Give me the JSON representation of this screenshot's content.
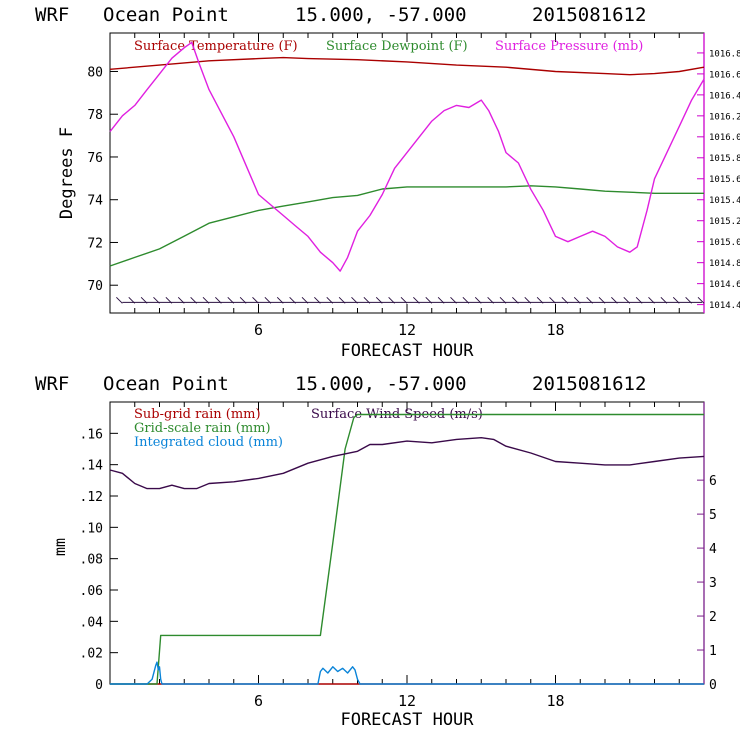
{
  "chart_data": [
    {
      "type": "line",
      "header": {
        "model": "WRF",
        "location": "Ocean Point",
        "coords": "15.000, -57.000",
        "init": "2015081612"
      },
      "xlabel": "FORECAST HOUR",
      "ylabel": "Degrees F",
      "xlim": [
        0,
        24
      ],
      "xticks": [
        6,
        12,
        18
      ],
      "ylim_left": [
        68.7,
        81.8
      ],
      "yticks_left": [
        70,
        72,
        74,
        76,
        78,
        80
      ],
      "ylim_right": [
        1014.32,
        1016.99
      ],
      "yticks_right": [
        "1014.4",
        "1014.6",
        "1014.8",
        "1015.0",
        "1015.2",
        "1015.4",
        "1015.6",
        "1015.8",
        "1016.0",
        "1016.2",
        "1016.4",
        "1016.6",
        "1016.8"
      ],
      "wind_barbs_y": 69.2,
      "wind_barbs_count": 48,
      "series": [
        {
          "name": "Surface Temperature (F)",
          "color": "#aa0000",
          "axis": "left",
          "x": [
            0,
            2,
            4,
            6,
            7,
            8,
            10,
            12,
            14,
            16,
            18,
            20,
            21,
            22,
            23,
            24
          ],
          "values": [
            80.1,
            80.3,
            80.5,
            80.6,
            80.65,
            80.6,
            80.55,
            80.45,
            80.3,
            80.2,
            80.0,
            79.9,
            79.85,
            79.9,
            80.0,
            80.2
          ]
        },
        {
          "name": "Surface Dewpoint (F)",
          "color": "#2e8b2e",
          "axis": "left",
          "x": [
            0,
            1,
            2,
            3,
            4,
            5,
            6,
            7,
            8,
            9,
            10,
            11,
            12,
            13,
            14,
            15,
            16,
            17,
            18,
            19,
            20,
            21,
            22,
            23,
            24
          ],
          "values": [
            70.9,
            71.3,
            71.7,
            72.3,
            72.9,
            73.2,
            73.5,
            73.7,
            73.9,
            74.1,
            74.2,
            74.5,
            74.6,
            74.6,
            74.6,
            74.6,
            74.6,
            74.65,
            74.6,
            74.5,
            74.4,
            74.35,
            74.3,
            74.3,
            74.3
          ]
        },
        {
          "name": "Surface Pressure (mb)",
          "color": "#e020e0",
          "axis": "right",
          "x": [
            0,
            0.5,
            1,
            1.5,
            2,
            2.5,
            3,
            3.3,
            3.6,
            4,
            5,
            6,
            7,
            7.5,
            8,
            8.5,
            9,
            9.3,
            9.6,
            10,
            10.5,
            11,
            11.5,
            12,
            12.5,
            13,
            13.5,
            14,
            14.5,
            15,
            15.3,
            15.7,
            16,
            16.5,
            17,
            17.5,
            18,
            18.5,
            19,
            19.5,
            20,
            20.5,
            21,
            21.3,
            21.7,
            22,
            22.5,
            23,
            23.5,
            24
          ],
          "values": [
            1016.05,
            1016.2,
            1016.3,
            1016.45,
            1016.6,
            1016.75,
            1016.85,
            1016.9,
            1016.7,
            1016.45,
            1016.0,
            1015.45,
            1015.25,
            1015.15,
            1015.05,
            1014.9,
            1014.8,
            1014.72,
            1014.85,
            1015.1,
            1015.25,
            1015.45,
            1015.7,
            1015.85,
            1016.0,
            1016.15,
            1016.25,
            1016.3,
            1016.28,
            1016.35,
            1016.25,
            1016.05,
            1015.85,
            1015.75,
            1015.5,
            1015.3,
            1015.05,
            1015.0,
            1015.05,
            1015.1,
            1015.05,
            1014.95,
            1014.9,
            1014.95,
            1015.3,
            1015.6,
            1015.85,
            1016.1,
            1016.35,
            1016.55
          ]
        }
      ]
    },
    {
      "type": "line",
      "header": {
        "model": "WRF",
        "location": "Ocean Point",
        "coords": "15.000, -57.000",
        "init": "2015081612"
      },
      "xlabel": "FORECAST HOUR",
      "ylabel": "mm",
      "xlim": [
        0,
        24
      ],
      "xticks": [
        6,
        12,
        18
      ],
      "ylim_left": [
        0,
        0.18
      ],
      "yticks_left": [
        "0",
        ".02",
        ".04",
        ".06",
        ".08",
        ".10",
        ".12",
        ".14",
        ".16"
      ],
      "ylim_right": [
        0,
        8.3
      ],
      "yticks_right": [
        "0",
        "1",
        "2",
        "3",
        "4",
        "5",
        "6"
      ],
      "series": [
        {
          "name": "Sub-grid rain (mm)",
          "color": "#aa0000",
          "axis": "left",
          "x": [
            0,
            24
          ],
          "values": [
            0,
            0
          ]
        },
        {
          "name": "Grid-scale rain (mm)",
          "color": "#2e8b2e",
          "axis": "left",
          "x": [
            0,
            1.9,
            2.05,
            8.5,
            9.0,
            9.5,
            9.85,
            10.0,
            24
          ],
          "values": [
            0,
            0,
            0.031,
            0.031,
            0.09,
            0.15,
            0.17,
            0.172,
            0.172
          ]
        },
        {
          "name": "Integrated cloud (mm)",
          "color": "#0a84d8",
          "axis": "left",
          "x": [
            0,
            1.5,
            1.7,
            1.85,
            1.9,
            1.95,
            2.0,
            2.05,
            2.1,
            8.4,
            8.5,
            8.6,
            8.8,
            9.0,
            9.2,
            9.4,
            9.6,
            9.8,
            9.9,
            10.0,
            10.1,
            24
          ],
          "values": [
            0,
            0,
            0.003,
            0.012,
            0.014,
            0.009,
            0.011,
            0.003,
            0,
            0,
            0.008,
            0.01,
            0.007,
            0.011,
            0.008,
            0.01,
            0.007,
            0.011,
            0.009,
            0.003,
            0,
            0
          ]
        },
        {
          "name": "Surface Wind Speed (m/s)",
          "color": "#3a0a4a",
          "axis": "right",
          "x": [
            0,
            0.5,
            1,
            1.5,
            2,
            2.5,
            3,
            3.5,
            4,
            5,
            6,
            7,
            8,
            9,
            10,
            10.5,
            11,
            12,
            13,
            14,
            15,
            15.5,
            16,
            17,
            18,
            19,
            20,
            21,
            22,
            23,
            24
          ],
          "values": [
            6.3,
            6.2,
            5.9,
            5.75,
            5.75,
            5.85,
            5.75,
            5.75,
            5.9,
            5.95,
            6.05,
            6.2,
            6.5,
            6.7,
            6.85,
            7.05,
            7.05,
            7.15,
            7.1,
            7.2,
            7.25,
            7.2,
            7.0,
            6.8,
            6.55,
            6.5,
            6.45,
            6.45,
            6.55,
            6.65,
            6.7
          ]
        }
      ]
    }
  ]
}
